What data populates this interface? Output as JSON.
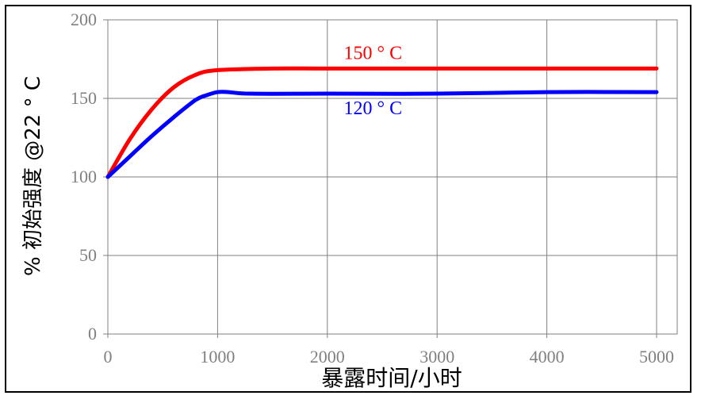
{
  "chart_data": {
    "type": "line",
    "xlabel": "暴露时间/小时",
    "ylabel": "% 初始强度 @22 ° C",
    "xlim": [
      0,
      5000
    ],
    "ylim": [
      0,
      200
    ],
    "x_ticks": [
      "0",
      "1000",
      "2000",
      "3000",
      "4000",
      "5000"
    ],
    "y_ticks": [
      "0",
      "50",
      "100",
      "150",
      "200"
    ],
    "grid": true,
    "series": [
      {
        "name": "150 ° C",
        "color": "#ff0000",
        "x": [
          0,
          200,
          400,
          600,
          800,
          1000,
          1500,
          2000,
          3000,
          4000,
          5000
        ],
        "y": [
          100,
          124,
          143,
          157,
          165,
          168,
          169,
          169,
          169,
          169,
          169
        ]
      },
      {
        "name": "120 ° C",
        "color": "#0000ff",
        "x": [
          0,
          200,
          400,
          600,
          800,
          900,
          1000,
          1100,
          1300,
          2000,
          3000,
          4000,
          5000
        ],
        "y": [
          100,
          113,
          126,
          138,
          149,
          152,
          154,
          154,
          153,
          153,
          153,
          154,
          154
        ]
      }
    ]
  }
}
